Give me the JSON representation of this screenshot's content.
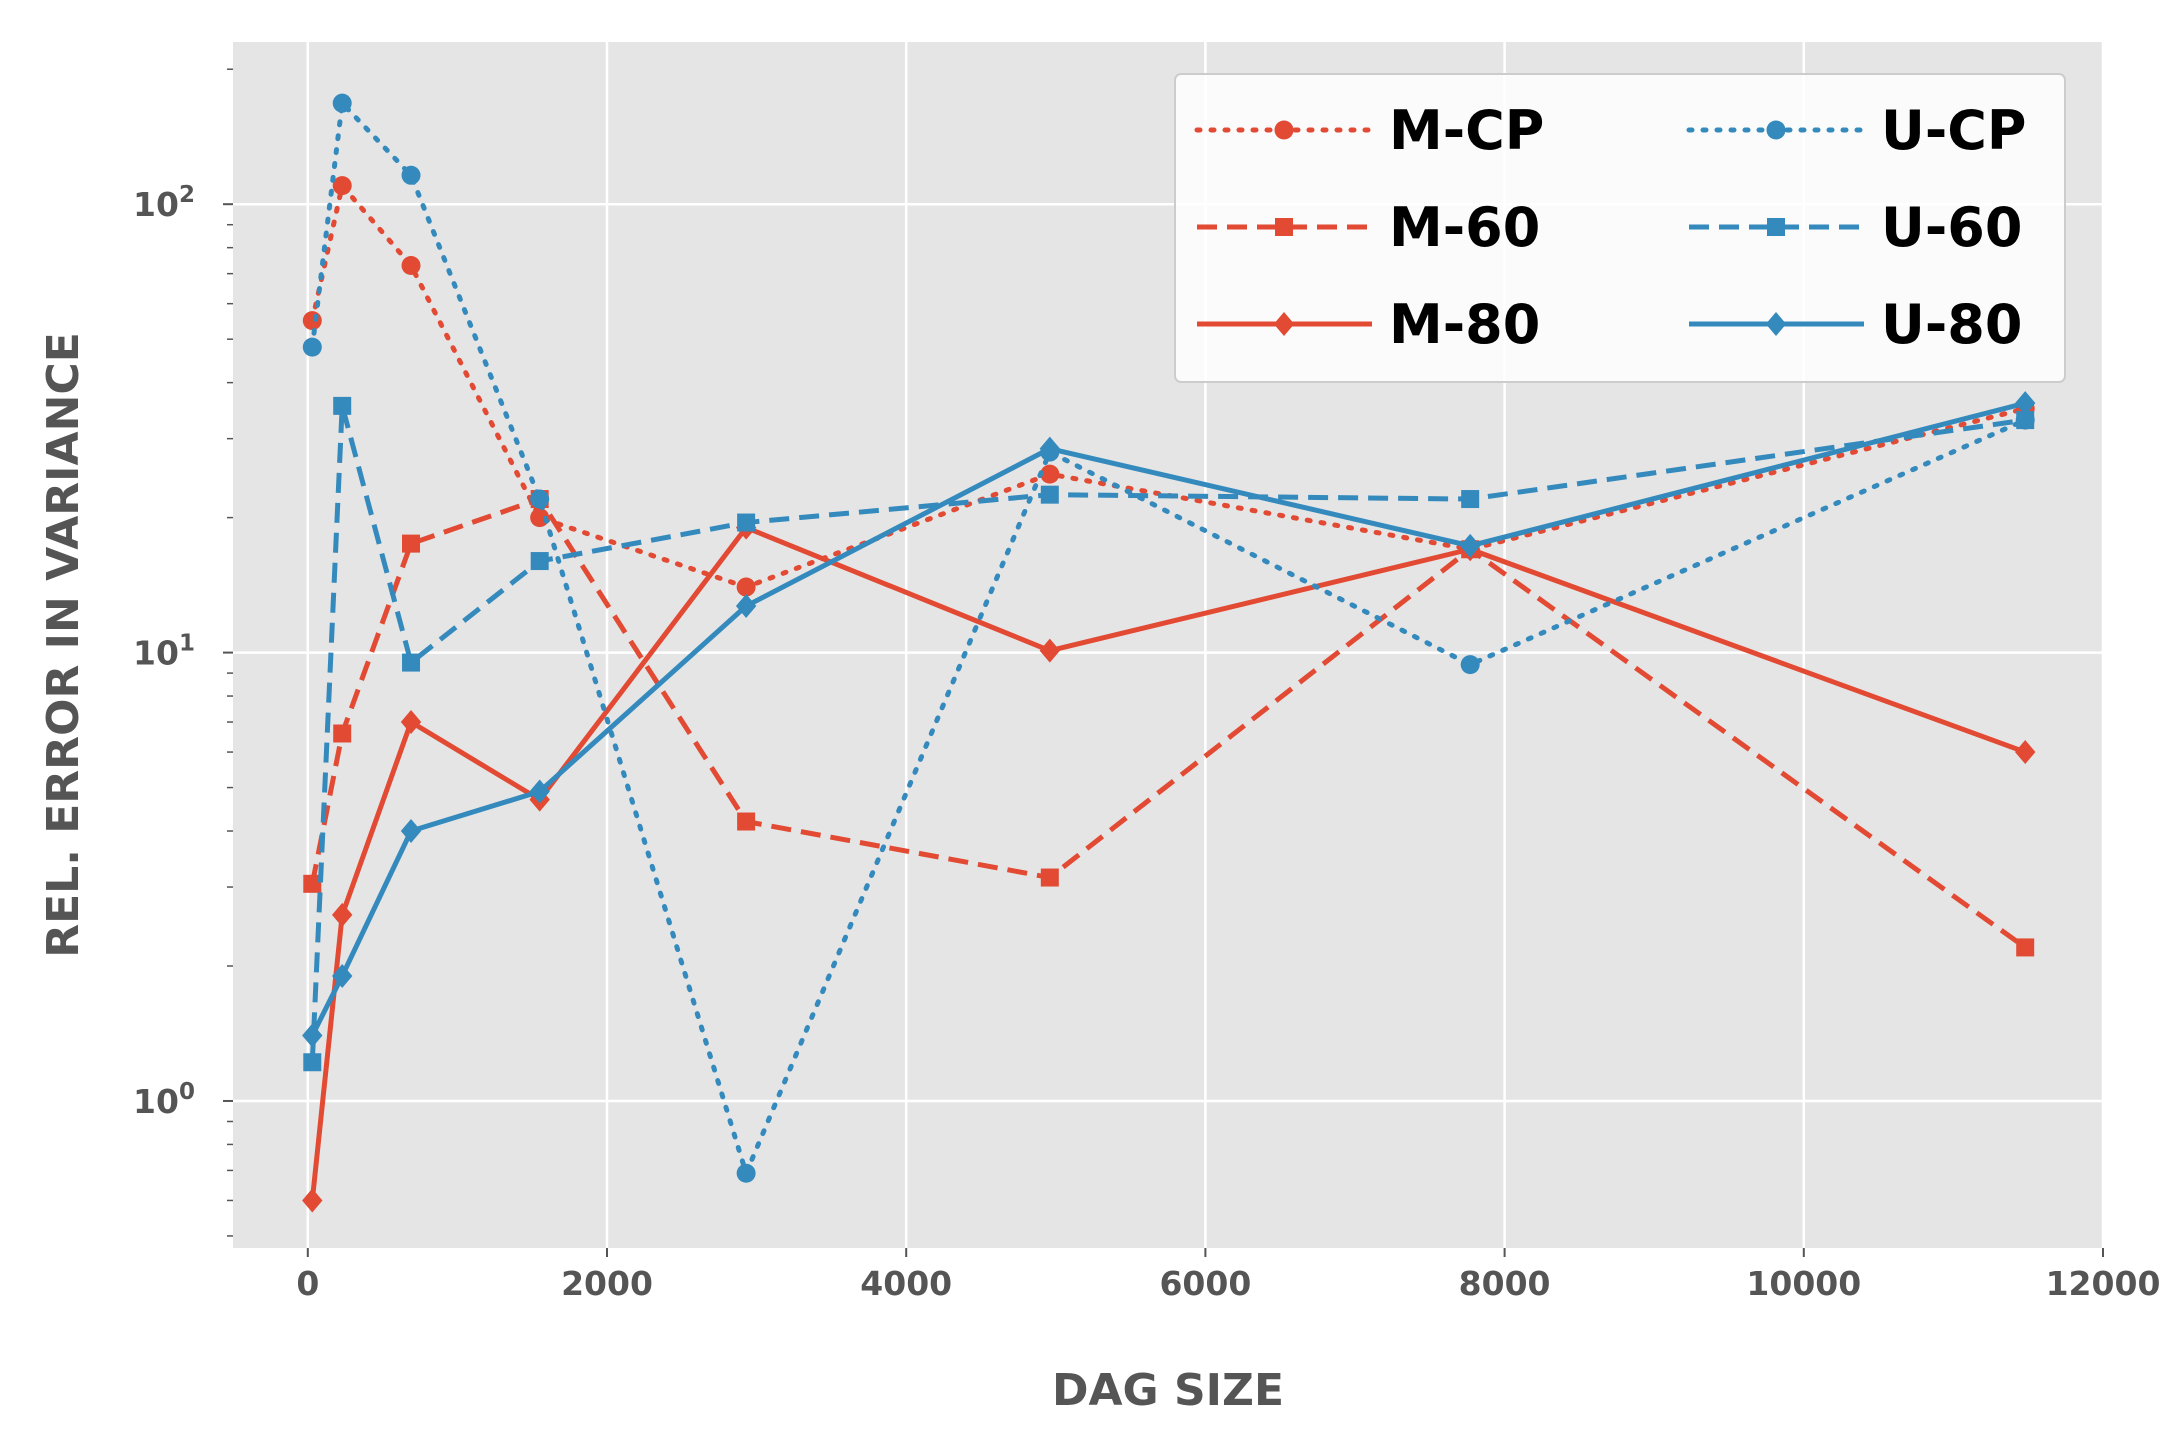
{
  "chart_data": {
    "type": "line",
    "title": "",
    "xlabel": "DAG SIZE",
    "ylabel": "REL. ERROR IN VARIANCE",
    "xlim": [
      -500,
      12000
    ],
    "ylim": [
      0.47,
      230
    ],
    "yscale": "log",
    "grid": true,
    "legend_position": "top-right",
    "legend_columns": 2,
    "x_ticks": [
      {
        "value": 0,
        "label": "0"
      },
      {
        "value": 2000,
        "label": "2000"
      },
      {
        "value": 4000,
        "label": "4000"
      },
      {
        "value": 6000,
        "label": "6000"
      },
      {
        "value": 8000,
        "label": "8000"
      },
      {
        "value": 10000,
        "label": "10000"
      },
      {
        "value": 12000,
        "label": "12000"
      }
    ],
    "y_ticks": [
      {
        "value": 1,
        "base": "10",
        "exp": "0"
      },
      {
        "value": 10,
        "base": "10",
        "exp": "1"
      },
      {
        "value": 100,
        "base": "10",
        "exp": "2"
      }
    ],
    "colors": {
      "M": "#E24A33",
      "U": "#348ABD",
      "background": "#E5E5E5",
      "grid": "#FFFFFF"
    },
    "x": [
      30,
      230,
      690,
      1550,
      2930,
      4960,
      7770,
      11480
    ],
    "series": [
      {
        "name": "M-CP",
        "color": "#E24A33",
        "linestyle": "dotted",
        "marker": "circle",
        "values": [
          55,
          110,
          73,
          20,
          14,
          25,
          17,
          35
        ]
      },
      {
        "name": "M-60",
        "color": "#E24A33",
        "linestyle": "dashed",
        "marker": "square",
        "values": [
          3.05,
          6.6,
          17.5,
          22,
          4.2,
          3.15,
          17,
          2.2
        ]
      },
      {
        "name": "M-80",
        "color": "#E24A33",
        "linestyle": "solid",
        "marker": "diamond",
        "values": [
          0.6,
          2.6,
          7.0,
          4.7,
          19,
          10.1,
          17,
          6.0
        ]
      },
      {
        "name": "U-CP",
        "color": "#348ABD",
        "linestyle": "dotted",
        "marker": "circle",
        "values": [
          48,
          168,
          116,
          22,
          0.69,
          28,
          9.4,
          33
        ]
      },
      {
        "name": "U-60",
        "color": "#348ABD",
        "linestyle": "dashed",
        "marker": "square",
        "values": [
          1.22,
          35.5,
          9.5,
          16,
          19.5,
          22.5,
          22,
          33
        ]
      },
      {
        "name": "U-80",
        "color": "#348ABD",
        "linestyle": "solid",
        "marker": "diamond",
        "values": [
          1.4,
          1.9,
          4.0,
          4.9,
          12.7,
          28.5,
          17.3,
          36
        ]
      }
    ]
  }
}
